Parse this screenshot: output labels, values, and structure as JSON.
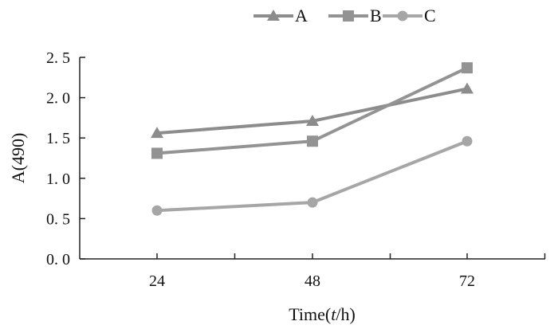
{
  "chart_data": {
    "type": "line",
    "x": [
      "24",
      "48",
      "72"
    ],
    "series": [
      {
        "name": "A",
        "values": [
          1.56,
          1.71,
          2.11
        ],
        "marker": "triangle",
        "color": "#8c8c8c"
      },
      {
        "name": "B",
        "values": [
          1.31,
          1.46,
          2.37
        ],
        "marker": "square",
        "color": "#939393"
      },
      {
        "name": "C",
        "values": [
          0.6,
          0.7,
          1.46
        ],
        "marker": "circle",
        "color": "#a6a6a6"
      }
    ],
    "title": "",
    "xlabel_prefix": "Time(",
    "xlabel_var": "t",
    "xlabel_suffix": "/h)",
    "ylabel": "A(490)",
    "ylim": [
      0,
      2.5
    ],
    "yticks": [
      0.0,
      0.5,
      1.0,
      1.5,
      2.0,
      2.5
    ],
    "ytick_labels": [
      "0. 0",
      "0. 5",
      "1. 0",
      "1. 5",
      "2. 0",
      "2. 5"
    ],
    "grid": false,
    "legend_position": "top"
  }
}
